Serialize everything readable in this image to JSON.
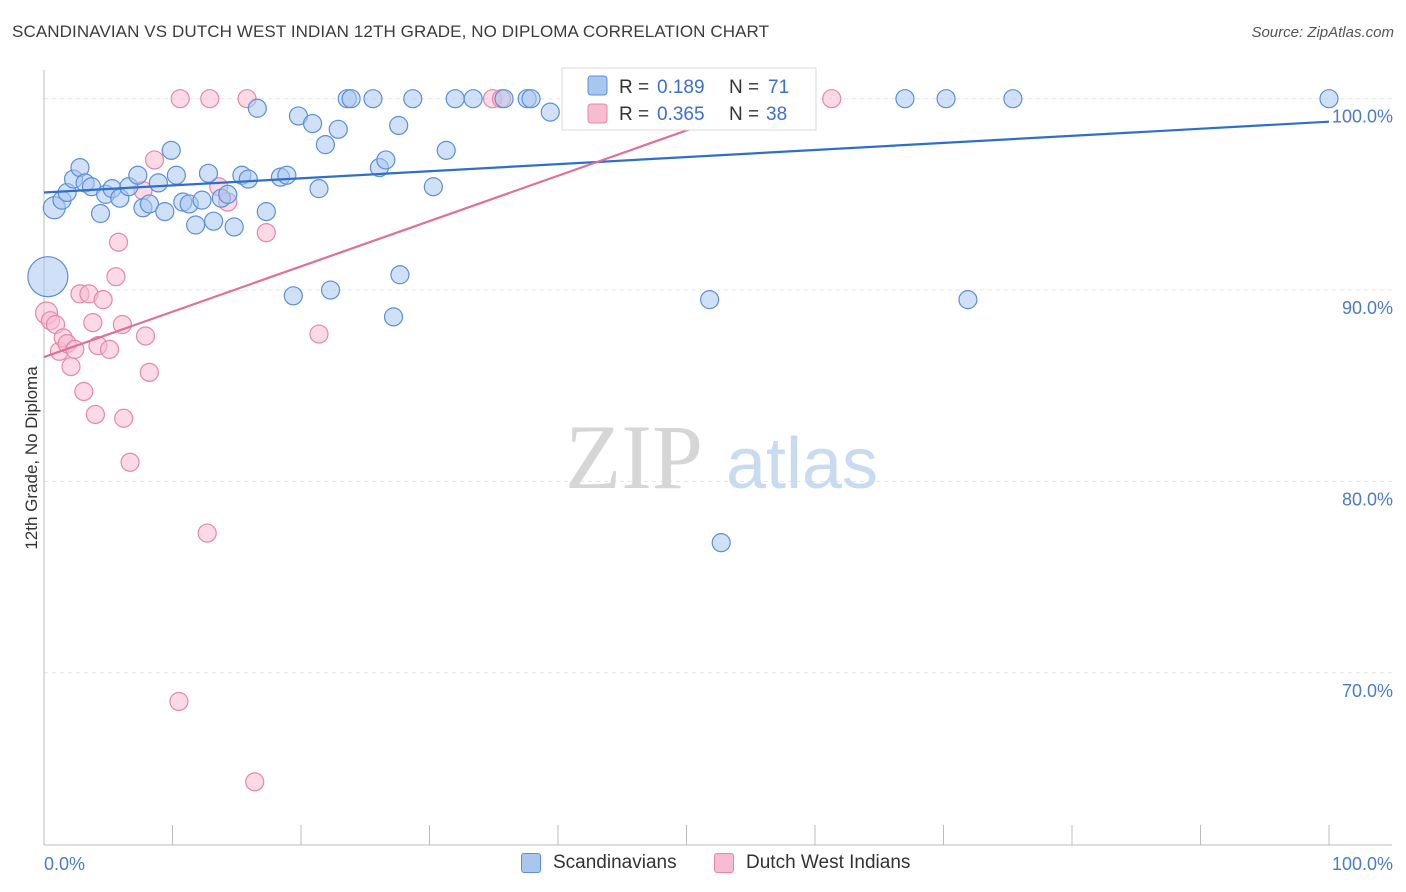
{
  "header": {
    "title": "SCANDINAVIAN VS DUTCH WEST INDIAN 12TH GRADE, NO DIPLOMA CORRELATION CHART",
    "source": "Source: ZipAtlas.com"
  },
  "watermark": {
    "zip": "ZIP",
    "atlas": "atlas"
  },
  "colors": {
    "blue_fill": "#a9c6ef",
    "blue_stroke": "#5b8fd9",
    "blue_line": "#2f6fcc",
    "pink_fill": "#f7bcd0",
    "pink_stroke": "#e587a8",
    "pink_line": "#e0709a",
    "tick_text": "#4a7cc7",
    "grid": "#e4e4e4"
  },
  "legend": {
    "rows": [
      {
        "r_label": "R =",
        "r_value": "0.189",
        "n_label": "N =",
        "n_value": "71"
      },
      {
        "r_label": "R =",
        "r_value": "0.365",
        "n_label": "N =",
        "n_value": "38"
      }
    ]
  },
  "chart_data": {
    "type": "scatter",
    "title": "SCANDINAVIAN VS DUTCH WEST INDIAN 12TH GRADE, NO DIPLOMA CORRELATION CHART",
    "xlabel": "",
    "ylabel": "12th Grade, No Diploma",
    "xlim": [
      0,
      100
    ],
    "ylim": [
      61,
      101.5
    ],
    "x_tick_labels": [
      "0.0%",
      "100.0%"
    ],
    "y_ticks": [
      70,
      80,
      90,
      100
    ],
    "y_tick_labels": [
      "70.0%",
      "80.0%",
      "90.0%",
      "100.0%"
    ],
    "grid": true,
    "legend_placement": "top-center and bottom",
    "series": [
      {
        "name": "Scandinavians",
        "r": 0.189,
        "n": 71,
        "trend": {
          "x": [
            0,
            100
          ],
          "y": [
            95.1,
            98.8
          ]
        },
        "points": [
          [
            0.3,
            90.7,
            20
          ],
          [
            0.8,
            94.3,
            11
          ],
          [
            1.4,
            94.7,
            9
          ],
          [
            1.8,
            95.1,
            9
          ],
          [
            2.3,
            95.8,
            9
          ],
          [
            2.8,
            96.4,
            9
          ],
          [
            3.2,
            95.6,
            9
          ],
          [
            3.7,
            95.4,
            9
          ],
          [
            4.4,
            94.0,
            9
          ],
          [
            4.8,
            95.0,
            9
          ],
          [
            5.3,
            95.3,
            9
          ],
          [
            5.9,
            94.8,
            9
          ],
          [
            6.6,
            95.4,
            9
          ],
          [
            7.3,
            96.0,
            9
          ],
          [
            7.7,
            94.3,
            9
          ],
          [
            8.2,
            94.5,
            9
          ],
          [
            8.9,
            95.6,
            9
          ],
          [
            9.4,
            94.1,
            9
          ],
          [
            9.9,
            97.3,
            9
          ],
          [
            10.3,
            96.0,
            9
          ],
          [
            10.8,
            94.6,
            9
          ],
          [
            11.3,
            94.5,
            9
          ],
          [
            11.8,
            93.4,
            9
          ],
          [
            12.3,
            94.7,
            9
          ],
          [
            12.8,
            96.1,
            9
          ],
          [
            13.2,
            93.6,
            9
          ],
          [
            13.8,
            94.8,
            9
          ],
          [
            14.3,
            95.0,
            9
          ],
          [
            14.8,
            93.3,
            9
          ],
          [
            15.4,
            96.0,
            9
          ],
          [
            15.9,
            95.8,
            9
          ],
          [
            16.6,
            99.5,
            9
          ],
          [
            17.3,
            94.1,
            9
          ],
          [
            18.4,
            95.9,
            9
          ],
          [
            18.9,
            96.0,
            9
          ],
          [
            19.4,
            89.7,
            9
          ],
          [
            19.8,
            99.1,
            9
          ],
          [
            20.9,
            98.7,
            9
          ],
          [
            21.4,
            95.3,
            9
          ],
          [
            21.9,
            97.6,
            9
          ],
          [
            22.3,
            90.0,
            9
          ],
          [
            22.9,
            98.4,
            9
          ],
          [
            23.6,
            100,
            9
          ],
          [
            23.9,
            100,
            9
          ],
          [
            25.6,
            100,
            9
          ],
          [
            26.1,
            96.4,
            9
          ],
          [
            26.6,
            96.8,
            9
          ],
          [
            27.2,
            88.6,
            9
          ],
          [
            27.6,
            98.6,
            9
          ],
          [
            27.7,
            90.8,
            9
          ],
          [
            28.7,
            100,
            9
          ],
          [
            30.3,
            95.4,
            9
          ],
          [
            31.3,
            97.3,
            9
          ],
          [
            32.0,
            100,
            9
          ],
          [
            33.4,
            100,
            9
          ],
          [
            35.8,
            100,
            9
          ],
          [
            37.6,
            100,
            9
          ],
          [
            37.9,
            100,
            9
          ],
          [
            39.4,
            99.3,
            9
          ],
          [
            42.3,
            100,
            9
          ],
          [
            43.9,
            100,
            9
          ],
          [
            46.4,
            100,
            9
          ],
          [
            47.9,
            100,
            9
          ],
          [
            51.8,
            89.5,
            9
          ],
          [
            52.7,
            76.8,
            9
          ],
          [
            67.0,
            100,
            9
          ],
          [
            70.2,
            100,
            9
          ],
          [
            71.9,
            89.5,
            9
          ],
          [
            75.4,
            100,
            9
          ],
          [
            100,
            100,
            9
          ],
          [
            55.0,
            100,
            9
          ]
        ]
      },
      {
        "name": "Dutch West Indians",
        "r": 0.365,
        "n": 38,
        "trend": {
          "x": [
            0,
            57
          ],
          "y": [
            86.5,
            100
          ]
        },
        "points": [
          [
            0.2,
            88.8,
            11
          ],
          [
            0.5,
            88.4,
            9
          ],
          [
            0.9,
            88.2,
            9
          ],
          [
            1.2,
            86.8,
            9
          ],
          [
            1.5,
            87.5,
            9
          ],
          [
            1.8,
            87.2,
            9
          ],
          [
            2.1,
            86.0,
            9
          ],
          [
            2.4,
            86.9,
            9
          ],
          [
            2.8,
            89.8,
            9
          ],
          [
            3.1,
            84.7,
            9
          ],
          [
            3.5,
            89.8,
            9
          ],
          [
            3.8,
            88.3,
            9
          ],
          [
            4.0,
            83.5,
            9
          ],
          [
            4.2,
            87.1,
            9
          ],
          [
            4.6,
            89.5,
            9
          ],
          [
            5.1,
            86.9,
            9
          ],
          [
            5.6,
            90.7,
            9
          ],
          [
            5.8,
            92.5,
            9
          ],
          [
            6.1,
            88.2,
            9
          ],
          [
            6.2,
            83.3,
            9
          ],
          [
            6.7,
            81.0,
            9
          ],
          [
            7.7,
            95.2,
            9
          ],
          [
            7.9,
            87.6,
            9
          ],
          [
            8.2,
            85.7,
            9
          ],
          [
            8.6,
            96.8,
            9
          ],
          [
            10.5,
            68.5,
            9
          ],
          [
            10.6,
            100,
            9
          ],
          [
            12.7,
            77.3,
            9
          ],
          [
            12.9,
            100,
            9
          ],
          [
            13.6,
            95.4,
            9
          ],
          [
            14.3,
            94.6,
            9
          ],
          [
            15.8,
            100,
            9
          ],
          [
            16.4,
            64.3,
            9
          ],
          [
            17.3,
            93.0,
            9
          ],
          [
            21.4,
            87.7,
            9
          ],
          [
            34.9,
            100,
            9
          ],
          [
            35.6,
            100,
            9
          ],
          [
            61.3,
            100,
            9
          ]
        ]
      }
    ],
    "legend_entries": [
      "Scandinavians",
      "Dutch West Indians"
    ]
  }
}
